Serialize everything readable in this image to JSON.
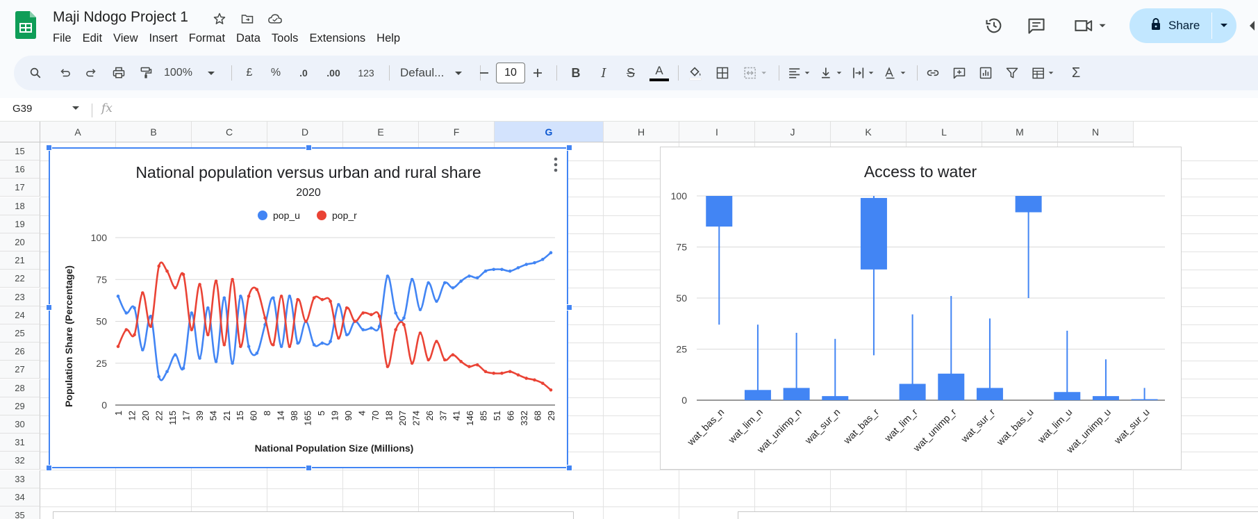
{
  "app": {
    "doc_title": "Maji Ndogo Project 1",
    "menu": [
      "File",
      "Edit",
      "View",
      "Insert",
      "Format",
      "Data",
      "Tools",
      "Extensions",
      "Help"
    ],
    "share_label": "Share"
  },
  "toolbar": {
    "zoom": "100%",
    "currency": "£",
    "percent": "%",
    "dec_decrease": ".0",
    "dec_increase": ".00",
    "number_format": "123",
    "font": "Defaul...",
    "font_size": "10",
    "bold": "B",
    "italic": "I",
    "strike": "S",
    "text_color": "A",
    "sum": "Σ"
  },
  "formula_bar": {
    "name_box": "G39",
    "fx": "fx"
  },
  "grid": {
    "columns": [
      "A",
      "B",
      "C",
      "D",
      "E",
      "F",
      "G",
      "H",
      "I",
      "J",
      "K",
      "L",
      "M",
      "N"
    ],
    "selected_column": "G",
    "rows": [
      "15",
      "16",
      "17",
      "18",
      "19",
      "20",
      "21",
      "22",
      "23",
      "24",
      "25",
      "26",
      "27",
      "28",
      "29",
      "30",
      "31",
      "32",
      "33",
      "34",
      "35"
    ]
  },
  "chart_data": [
    {
      "type": "line",
      "title": "National population versus urban and rural share",
      "subtitle": "2020",
      "xlabel": "National Population Size (Millions)",
      "ylabel": "Population Share (Percentage)",
      "ylim": [
        0,
        100
      ],
      "yticks": [
        "0",
        "25",
        "50",
        "75",
        "100"
      ],
      "legend": "top",
      "x_tick_labels": [
        "1",
        "12",
        "20",
        "22",
        "115",
        "17",
        "39",
        "54",
        "21",
        "15",
        "60",
        "8",
        "14",
        "98",
        "165",
        "5",
        "19",
        "90",
        "4",
        "70",
        "18",
        "207",
        "274",
        "26",
        "37",
        "41",
        "146",
        "85",
        "51",
        "66",
        "332",
        "68",
        "29"
      ],
      "series": [
        {
          "name": "pop_u",
          "color": "#4285f4",
          "values": [
            65,
            55,
            58,
            33,
            53,
            17,
            20,
            30,
            22,
            55,
            28,
            58,
            26,
            64,
            25,
            65,
            35,
            31,
            48,
            64,
            35,
            65,
            37,
            50,
            36,
            37,
            38,
            60,
            42,
            50,
            45,
            46,
            47,
            77,
            55,
            52,
            75,
            57,
            73,
            62,
            73,
            70,
            74,
            77,
            76,
            80,
            81,
            81,
            80,
            82,
            84,
            85,
            87,
            91
          ]
        },
        {
          "name": "pop_r",
          "color": "#ea4335",
          "values": [
            35,
            45,
            42,
            67,
            47,
            83,
            80,
            70,
            78,
            45,
            72,
            42,
            74,
            36,
            75,
            35,
            65,
            69,
            52,
            36,
            65,
            35,
            63,
            50,
            64,
            63,
            62,
            40,
            58,
            50,
            55,
            54,
            53,
            23,
            45,
            48,
            25,
            43,
            27,
            38,
            27,
            30,
            26,
            23,
            24,
            20,
            19,
            19,
            20,
            18,
            16,
            15,
            13,
            9
          ]
        }
      ]
    },
    {
      "type": "candlestick",
      "title": "Access to water",
      "ylim": [
        0,
        100
      ],
      "yticks": [
        "0",
        "25",
        "50",
        "75",
        "100"
      ],
      "categories": [
        "wat_bas_n",
        "wat_lim_n",
        "wat_unimp_n",
        "wat_sur_n",
        "wat_bas_r",
        "wat_lim_r",
        "wat_unimp_r",
        "wat_sur_r",
        "wat_bas_u",
        "wat_lim_u",
        "wat_unimp_u",
        "wat_sur_u"
      ],
      "low": [
        37,
        0,
        0,
        0,
        22,
        0,
        0,
        0,
        50,
        0,
        0,
        0
      ],
      "open": [
        85,
        0,
        0,
        0,
        64,
        0,
        0,
        0,
        92,
        0,
        0,
        0
      ],
      "close": [
        100,
        5,
        6,
        2,
        99,
        8,
        13,
        6,
        100,
        4,
        2,
        0.5
      ],
      "high": [
        100,
        37,
        33,
        30,
        100,
        42,
        51,
        40,
        100,
        34,
        20,
        6
      ],
      "color": "#4285f4"
    }
  ]
}
